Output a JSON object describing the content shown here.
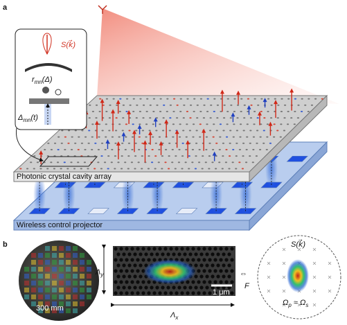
{
  "panel_a": {
    "label": "a",
    "inset": {
      "emission": "S(k⃗)",
      "coupling": {
        "symbol": "r",
        "subscript": "mn",
        "argument": "(Δ)"
      },
      "detuning": {
        "symbol": "Δ",
        "subscript": "mn",
        "argument": "(t)"
      }
    },
    "cavity_array_label": "Photonic crystal cavity array",
    "projector_label": "Wireless control projector"
  },
  "panel_b": {
    "label": "b",
    "wafer_size": "300 mm",
    "period_y": {
      "symbol": "Λ",
      "subscript": "y"
    },
    "period_x": {
      "symbol": "Λ",
      "subscript": "x"
    },
    "scale_bar": "1 μm",
    "transform_symbol": "⇔",
    "transform_label": "F",
    "far_field": "S(k⃗)",
    "condition": {
      "a": "Ω",
      "a_sub": "p",
      "mid": " ≈ Ω",
      "b_sub": "s"
    }
  }
}
